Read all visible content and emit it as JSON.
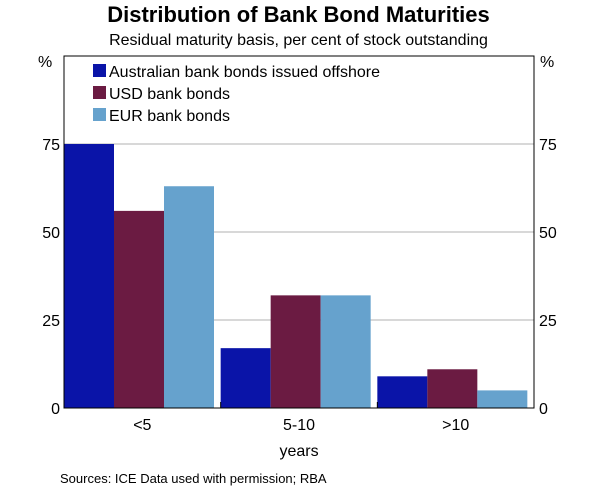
{
  "title": "Distribution of Bank Bond Maturities",
  "subtitle": "Residual maturity basis, per cent of stock outstanding",
  "unit_left": "%",
  "unit_right": "%",
  "source": "Sources:  ICE Data used with permission; RBA",
  "chart_data": {
    "type": "bar",
    "categories": [
      "<5",
      "5-10",
      ">10"
    ],
    "xlabel": "years",
    "ylabel": "%",
    "ylim": [
      0,
      75
    ],
    "yticks": [
      0,
      25,
      50,
      75
    ],
    "grid": true,
    "legend_position": "top-left",
    "series": [
      {
        "name": "Australian bank bonds issued offshore",
        "color": "#0a14a8",
        "values": [
          75,
          17,
          9
        ]
      },
      {
        "name": "USD bank bonds",
        "color": "#6b1b42",
        "values": [
          56,
          32,
          11
        ]
      },
      {
        "name": "EUR bank bonds",
        "color": "#66a2cd",
        "values": [
          63,
          32,
          5
        ]
      }
    ]
  }
}
